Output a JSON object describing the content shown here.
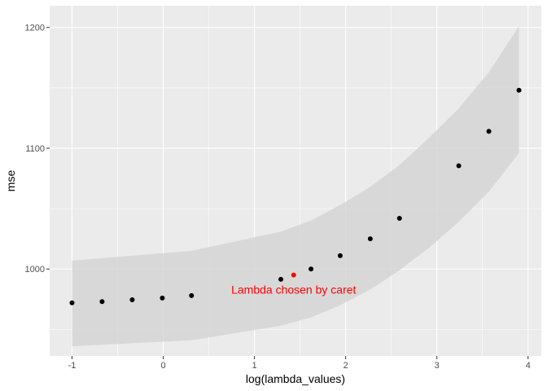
{
  "chart_data": {
    "type": "scatter",
    "title": "",
    "xlabel": "log(lambda_values)",
    "ylabel": "mse",
    "xlim": [
      -1.245,
      4.145
    ],
    "ylim": [
      928,
      1218
    ],
    "x_ticks": [
      -1,
      0,
      1,
      2,
      3,
      4
    ],
    "x_tick_labels": [
      "-1",
      "0",
      "1",
      "2",
      "3",
      "4"
    ],
    "y_ticks": [
      1000,
      1100,
      1200
    ],
    "y_tick_labels": [
      "1000",
      "1100",
      "1200"
    ],
    "grid": true,
    "legend": "none",
    "points": [
      {
        "x": -1.0,
        "y": 972
      },
      {
        "x": -0.67,
        "y": 973
      },
      {
        "x": -0.34,
        "y": 974.5
      },
      {
        "x": -0.01,
        "y": 976
      },
      {
        "x": 0.31,
        "y": 978
      },
      {
        "x": 1.29,
        "y": 991.5
      },
      {
        "x": 1.62,
        "y": 1000
      },
      {
        "x": 1.94,
        "y": 1011
      },
      {
        "x": 2.27,
        "y": 1025
      },
      {
        "x": 2.59,
        "y": 1042
      },
      {
        "x": 3.24,
        "y": 1085.5
      },
      {
        "x": 3.57,
        "y": 1114
      },
      {
        "x": 3.9,
        "y": 1148
      }
    ],
    "ribbon": [
      {
        "x": -1.0,
        "lower": 936,
        "upper": 1007
      },
      {
        "x": 0.31,
        "lower": 941,
        "upper": 1015
      },
      {
        "x": 1.29,
        "lower": 953,
        "upper": 1031
      },
      {
        "x": 1.62,
        "lower": 960,
        "upper": 1040
      },
      {
        "x": 1.94,
        "lower": 970,
        "upper": 1053
      },
      {
        "x": 2.27,
        "lower": 983,
        "upper": 1068
      },
      {
        "x": 2.59,
        "lower": 999,
        "upper": 1086
      },
      {
        "x": 2.92,
        "lower": 1018,
        "upper": 1109
      },
      {
        "x": 3.24,
        "lower": 1039,
        "upper": 1133
      },
      {
        "x": 3.57,
        "lower": 1064,
        "upper": 1163
      },
      {
        "x": 3.9,
        "lower": 1096,
        "upper": 1201
      }
    ],
    "highlight": {
      "x": 1.43,
      "y": 995,
      "color": "#ff0000"
    },
    "annotation": {
      "text": "Lambda chosen by caret",
      "x": 1.43,
      "y": 983,
      "color": "#ff0000"
    },
    "colors": {
      "panel": "#ebebeb",
      "grid": "#ffffff",
      "ribbon": "#d3d3d3",
      "point": "#000000"
    }
  }
}
